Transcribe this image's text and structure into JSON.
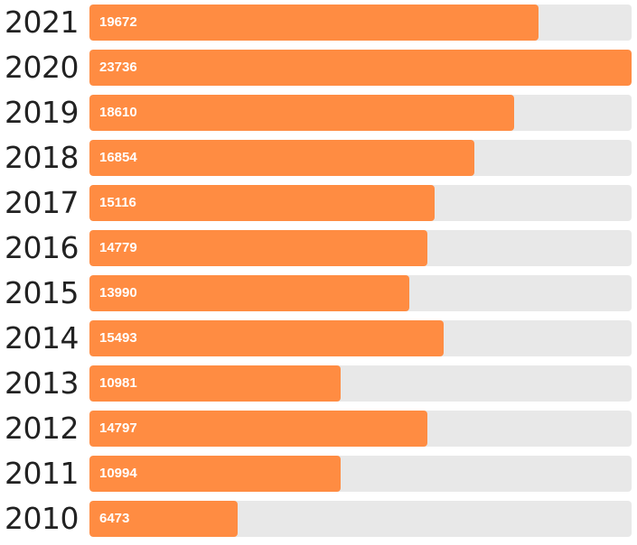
{
  "chart_data": {
    "type": "bar",
    "orientation": "horizontal",
    "categories": [
      "2021",
      "2020",
      "2019",
      "2018",
      "2017",
      "2016",
      "2015",
      "2014",
      "2013",
      "2012",
      "2011",
      "2010"
    ],
    "values": [
      19672,
      23736,
      18610,
      16854,
      15116,
      14779,
      13990,
      15493,
      10981,
      14797,
      10994,
      6473
    ],
    "value_labels": [
      "19672",
      "23736",
      "18610",
      "16854",
      "15116",
      "14779",
      "13990",
      "15493",
      "10981",
      "14797",
      "10994",
      "6473"
    ],
    "xlim": [
      0,
      23736
    ],
    "grid": false,
    "legend": "none",
    "colors": {
      "bar": "#ff8c42",
      "track": "#e8e8e8",
      "value_text": "#ffffff",
      "category_text": "#222222"
    }
  }
}
